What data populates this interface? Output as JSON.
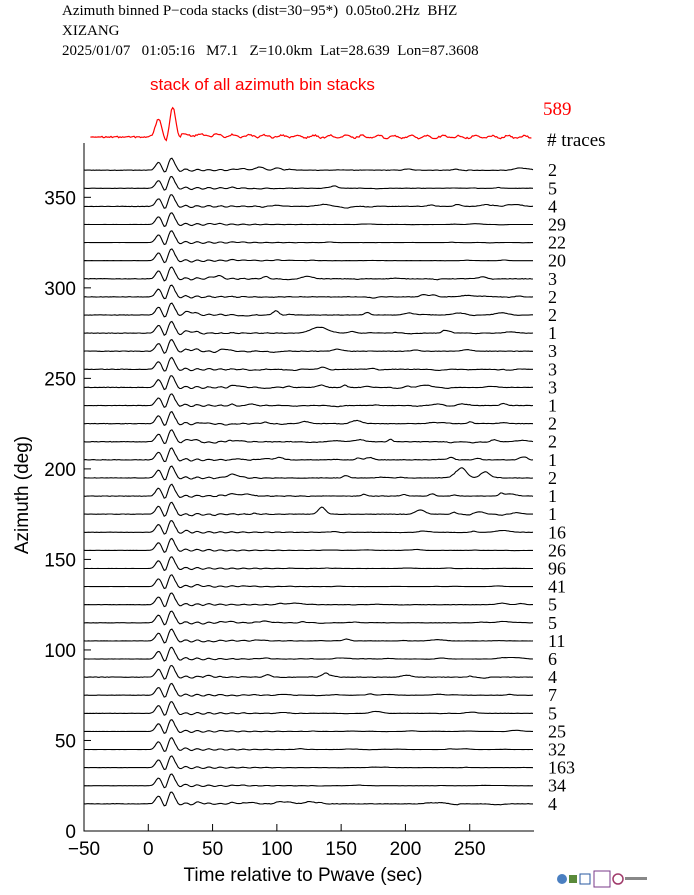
{
  "header": {
    "line1": "Azimuth binned P−coda stacks (dist=30−95*)  0.05to0.2Hz  BHZ",
    "line2": "XIZANG",
    "line3": "2025/01/07   01:05:16   M7.1   Z=10.0km  Lat=28.639  Lon=87.3608"
  },
  "chart_data": {
    "type": "line",
    "title": "stack of all azimuth bin stacks",
    "total_traces": "589",
    "traces_label": "# traces",
    "xlabel": "Time relative to Pwave (sec)",
    "ylabel": "Azimuth (deg)",
    "xlim": [
      -50,
      300
    ],
    "ylim": [
      0,
      380
    ],
    "x_ticks": [
      -50,
      0,
      50,
      100,
      150,
      200,
      250
    ],
    "y_ticks": [
      0,
      50,
      100,
      150,
      200,
      250,
      300,
      350
    ],
    "trace_color": "#000000",
    "stack_color": "#ff0000",
    "bin_width": 10,
    "bins": [
      {
        "azimuth": 365,
        "traces": "2"
      },
      {
        "azimuth": 355,
        "traces": "5"
      },
      {
        "azimuth": 345,
        "traces": "4"
      },
      {
        "azimuth": 335,
        "traces": "29"
      },
      {
        "azimuth": 325,
        "traces": "22"
      },
      {
        "azimuth": 315,
        "traces": "20"
      },
      {
        "azimuth": 305,
        "traces": "3"
      },
      {
        "azimuth": 295,
        "traces": "2"
      },
      {
        "azimuth": 285,
        "traces": "2"
      },
      {
        "azimuth": 275,
        "traces": "1"
      },
      {
        "azimuth": 265,
        "traces": "3"
      },
      {
        "azimuth": 255,
        "traces": "3"
      },
      {
        "azimuth": 245,
        "traces": "3"
      },
      {
        "azimuth": 235,
        "traces": "1"
      },
      {
        "azimuth": 225,
        "traces": "2"
      },
      {
        "azimuth": 215,
        "traces": "2"
      },
      {
        "azimuth": 205,
        "traces": "1"
      },
      {
        "azimuth": 195,
        "traces": "2"
      },
      {
        "azimuth": 185,
        "traces": "1"
      },
      {
        "azimuth": 175,
        "traces": "1"
      },
      {
        "azimuth": 165,
        "traces": "16"
      },
      {
        "azimuth": 155,
        "traces": "26"
      },
      {
        "azimuth": 145,
        "traces": "96"
      },
      {
        "azimuth": 135,
        "traces": "41"
      },
      {
        "azimuth": 125,
        "traces": "5"
      },
      {
        "azimuth": 115,
        "traces": "5"
      },
      {
        "azimuth": 105,
        "traces": "11"
      },
      {
        "azimuth": 95,
        "traces": "6"
      },
      {
        "azimuth": 85,
        "traces": "4"
      },
      {
        "azimuth": 75,
        "traces": "7"
      },
      {
        "azimuth": 65,
        "traces": "5"
      },
      {
        "azimuth": 55,
        "traces": "25"
      },
      {
        "azimuth": 45,
        "traces": "32"
      },
      {
        "azimuth": 35,
        "traces": "163"
      },
      {
        "azimuth": 25,
        "traces": "34"
      },
      {
        "azimuth": 15,
        "traces": "4"
      }
    ]
  }
}
